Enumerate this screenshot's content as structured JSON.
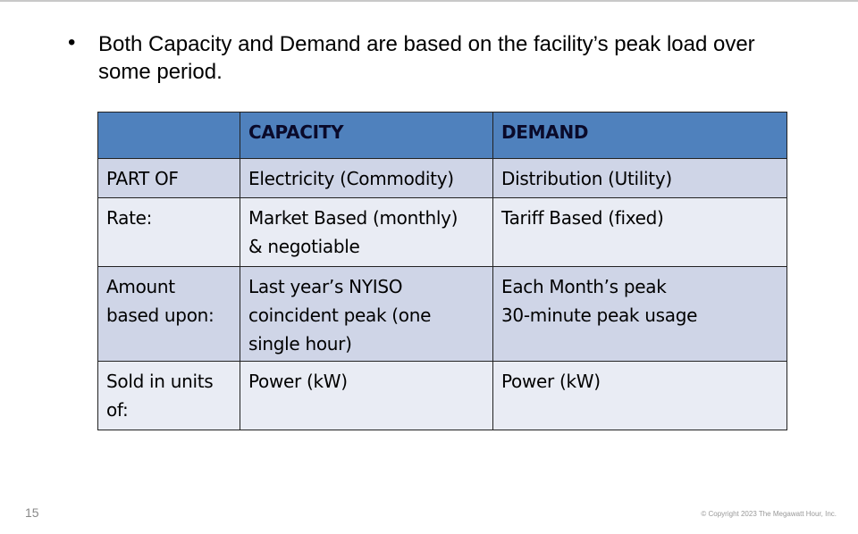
{
  "bullet": "Both Capacity and Demand are based on the facility’s peak load over some period.",
  "table": {
    "header": [
      [
        ""
      ],
      [
        "CAPACITY"
      ],
      [
        "DEMAND"
      ]
    ],
    "rows": [
      [
        [
          "PART OF"
        ],
        [
          "Electricity (Commodity)"
        ],
        [
          "Distribution (Utility)"
        ]
      ],
      [
        [
          "Rate:"
        ],
        [
          "Market Based (monthly)",
          "& negotiable"
        ],
        [
          "Tariff Based (fixed)"
        ]
      ],
      [
        [
          "Amount",
          "based upon:"
        ],
        [
          "Last year’s NYISO",
          "coincident peak (one",
          "single hour)"
        ],
        [
          "Each Month’s peak",
          "30-minute peak usage"
        ]
      ],
      [
        [
          "Sold in units",
          "of:"
        ],
        [
          "Power (kW)"
        ],
        [
          "Power (kW)"
        ]
      ]
    ]
  },
  "page_number": "15",
  "copyright": "© Copyright 2023 The Megawatt Hour, Inc."
}
